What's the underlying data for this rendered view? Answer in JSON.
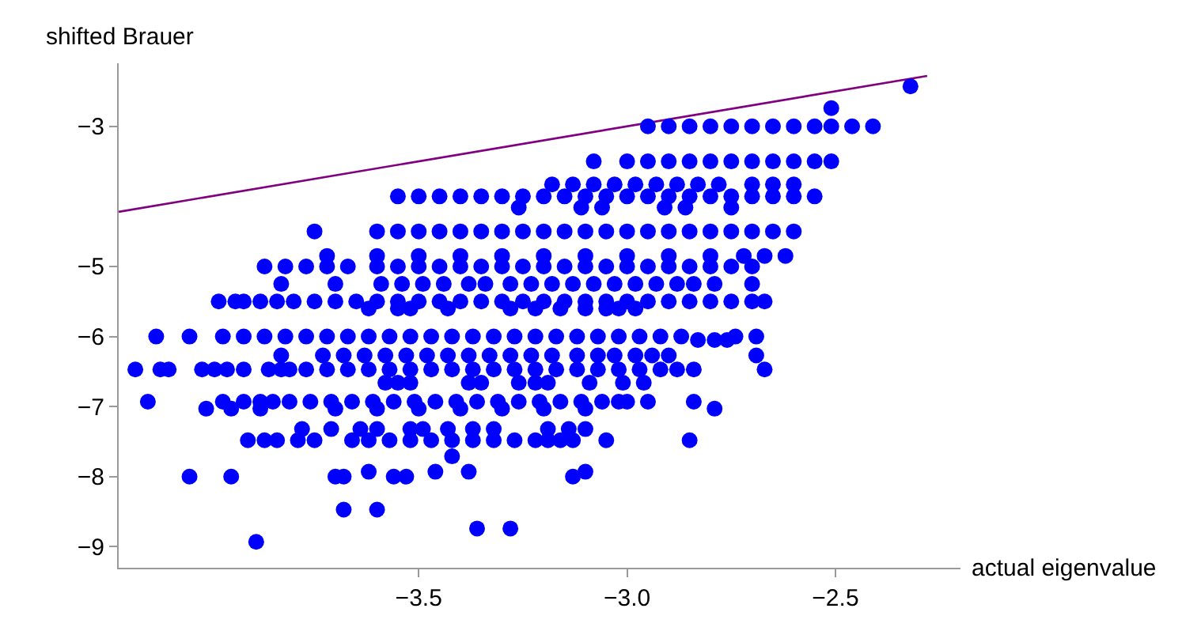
{
  "chart_data": {
    "type": "scatter",
    "xlabel": "actual eigenvalue",
    "ylabel": "shifted Brauer",
    "xlim": [
      -4.22,
      -2.2
    ],
    "ylim": [
      -9.3,
      -2.1
    ],
    "xticks": [
      {
        "value": -3.5,
        "label": "−3.5"
      },
      {
        "value": -3.0,
        "label": "−3.0"
      },
      {
        "value": -2.5,
        "label": "−2.5"
      }
    ],
    "yticks": [
      {
        "value": -3,
        "label": "−3"
      },
      {
        "value": -5,
        "label": "−5"
      },
      {
        "value": -6,
        "label": "−6"
      },
      {
        "value": -7,
        "label": "−7"
      },
      {
        "value": -8,
        "label": "−8"
      },
      {
        "value": -9,
        "label": "−9"
      }
    ],
    "marker": "circle",
    "series": [
      {
        "type": "line",
        "marker": "none",
        "color": "#800080",
        "x": [
          -4.22,
          -2.28
        ],
        "values": [
          -4.22,
          -2.28
        ]
      },
      {
        "color": "#0000ff",
        "x": [
          -2.32,
          -2.51
        ],
        "values": [
          -2.43,
          -2.74
        ]
      },
      {
        "color": "#0000ff",
        "x": [
          -2.95,
          -2.9,
          -2.85,
          -2.8,
          -2.75,
          -2.7,
          -2.65,
          -2.6,
          -2.55,
          -2.51,
          -2.46,
          -2.41
        ],
        "values": [
          -3,
          -3,
          -3,
          -3,
          -3,
          -3,
          -3,
          -3,
          -3,
          -3,
          -3,
          -3
        ]
      },
      {
        "color": "#0000ff",
        "x": [
          -3.08,
          -3.0,
          -2.95,
          -2.9,
          -2.85,
          -2.8,
          -2.75,
          -2.7,
          -2.65,
          -2.6,
          -2.55,
          -2.51
        ],
        "values": [
          -3.5,
          -3.5,
          -3.5,
          -3.5,
          -3.5,
          -3.5,
          -3.5,
          -3.5,
          -3.5,
          -3.5,
          -3.5,
          -3.5
        ]
      },
      {
        "color": "#0000ff",
        "x": [
          -3.18,
          -3.13,
          -3.08,
          -3.03,
          -2.98,
          -2.93,
          -2.88,
          -2.83,
          -2.78,
          -2.7,
          -2.65,
          -2.6
        ],
        "values": [
          -3.83,
          -3.83,
          -3.83,
          -3.83,
          -3.83,
          -3.83,
          -3.83,
          -3.83,
          -3.83,
          -3.83,
          -3.83,
          -3.83
        ]
      },
      {
        "color": "#0000ff",
        "x": [
          -3.55,
          -3.5,
          -3.45,
          -3.4,
          -3.35,
          -3.3,
          -3.25,
          -3.2,
          -3.15,
          -3.1,
          -3.05,
          -3.0,
          -2.95,
          -2.9,
          -2.85,
          -2.8,
          -2.75,
          -2.7,
          -2.65,
          -2.6,
          -2.55
        ],
        "values": [
          -4,
          -4,
          -4,
          -4,
          -4,
          -4,
          -4,
          -4,
          -4,
          -4,
          -4,
          -4,
          -4,
          -4,
          -4,
          -4,
          -4,
          -4,
          -4,
          -4,
          -4
        ]
      },
      {
        "color": "#0000ff",
        "x": [
          -3.26,
          -3.11,
          -3.06,
          -2.91,
          -2.86,
          -2.75
        ],
        "values": [
          -4.16,
          -4.16,
          -4.16,
          -4.16,
          -4.16,
          -4.16
        ]
      },
      {
        "color": "#0000ff",
        "x": [
          -3.75,
          -3.6,
          -3.55,
          -3.5,
          -3.45,
          -3.4,
          -3.35,
          -3.3,
          -3.25,
          -3.2,
          -3.15,
          -3.1,
          -3.05,
          -3.0,
          -2.95,
          -2.9,
          -2.85,
          -2.8,
          -2.75,
          -2.7,
          -2.65,
          -2.6
        ],
        "values": [
          -4.5,
          -4.5,
          -4.5,
          -4.5,
          -4.5,
          -4.5,
          -4.5,
          -4.5,
          -4.5,
          -4.5,
          -4.5,
          -4.5,
          -4.5,
          -4.5,
          -4.5,
          -4.5,
          -4.5,
          -4.5,
          -4.5,
          -4.5,
          -4.5,
          -4.5
        ]
      },
      {
        "color": "#0000ff",
        "x": [
          -3.72,
          -3.6,
          -3.5,
          -3.4,
          -3.3,
          -3.2,
          -3.1,
          -3.0,
          -2.9,
          -2.8,
          -2.72,
          -2.67,
          -2.62
        ],
        "values": [
          -4.85,
          -4.85,
          -4.85,
          -4.85,
          -4.85,
          -4.85,
          -4.85,
          -4.85,
          -4.85,
          -4.85,
          -4.85,
          -4.85,
          -4.85
        ]
      },
      {
        "color": "#0000ff",
        "x": [
          -3.87,
          -3.82,
          -3.77,
          -3.72,
          -3.67,
          -3.6,
          -3.55,
          -3.5,
          -3.45,
          -3.4,
          -3.35,
          -3.3,
          -3.25,
          -3.2,
          -3.15,
          -3.1,
          -3.05,
          -3.0,
          -2.95,
          -2.9,
          -2.85,
          -2.8,
          -2.75,
          -2.7
        ],
        "values": [
          -5,
          -5,
          -5,
          -5,
          -5,
          -5,
          -5,
          -5,
          -5,
          -5,
          -5,
          -5,
          -5,
          -5,
          -5,
          -5,
          -5,
          -5,
          -5,
          -5,
          -5,
          -5,
          -5,
          -5
        ]
      },
      {
        "color": "#0000ff",
        "x": [
          -3.83,
          -3.7,
          -3.59,
          -3.54,
          -3.49,
          -3.44,
          -3.38,
          -3.34,
          -3.28,
          -3.23,
          -3.18,
          -3.13,
          -3.08,
          -3.03,
          -2.98,
          -2.93,
          -2.88,
          -2.84,
          -2.79,
          -2.7
        ],
        "values": [
          -5.25,
          -5.25,
          -5.25,
          -5.25,
          -5.25,
          -5.25,
          -5.25,
          -5.25,
          -5.25,
          -5.25,
          -5.25,
          -5.25,
          -5.25,
          -5.25,
          -5.25,
          -5.25,
          -5.25,
          -5.25,
          -5.25,
          -5.25
        ]
      },
      {
        "color": "#0000ff",
        "x": [
          -3.98,
          -3.94,
          -3.92,
          -3.88,
          -3.84,
          -3.8,
          -3.75,
          -3.7,
          -3.65,
          -3.6,
          -3.55,
          -3.5,
          -3.45,
          -3.4,
          -3.35,
          -3.3,
          -3.25,
          -3.2,
          -3.15,
          -3.1,
          -3.05,
          -3.0,
          -2.95,
          -2.9,
          -2.85,
          -2.8,
          -2.75,
          -2.7,
          -2.67
        ],
        "values": [
          -5.5,
          -5.5,
          -5.5,
          -5.5,
          -5.5,
          -5.5,
          -5.5,
          -5.5,
          -5.5,
          -5.5,
          -5.5,
          -5.5,
          -5.5,
          -5.5,
          -5.5,
          -5.5,
          -5.5,
          -5.5,
          -5.5,
          -5.5,
          -5.5,
          -5.5,
          -5.5,
          -5.5,
          -5.5,
          -5.5,
          -5.5,
          -5.5,
          -5.5
        ]
      },
      {
        "color": "#0000ff",
        "x": [
          -3.62,
          -3.55,
          -3.52,
          -3.43,
          -3.28,
          -3.22,
          -3.16,
          -3.1,
          -3.05,
          -3.02,
          -2.98
        ],
        "values": [
          -5.6,
          -5.6,
          -5.6,
          -5.6,
          -5.6,
          -5.6,
          -5.6,
          -5.6,
          -5.6,
          -5.6,
          -5.6
        ]
      },
      {
        "color": "#0000ff",
        "x": [
          -4.13,
          -4.05,
          -3.97,
          -3.92,
          -3.87,
          -3.82,
          -3.77,
          -3.72,
          -3.67,
          -3.62,
          -3.57,
          -3.52,
          -3.47,
          -3.42,
          -3.37,
          -3.32,
          -3.27,
          -3.22,
          -3.17,
          -3.12,
          -3.07,
          -3.02,
          -2.97,
          -2.92,
          -2.87,
          -2.83,
          -2.79,
          -2.76,
          -2.74,
          -2.69
        ],
        "values": [
          -6,
          -6,
          -6,
          -6,
          -6,
          -6,
          -6,
          -6,
          -6,
          -6,
          -6,
          -6,
          -6,
          -6,
          -6,
          -6,
          -6,
          -6,
          -6,
          -6,
          -6,
          -6,
          -6,
          -6,
          -6,
          -6.05,
          -6.05,
          -6.05,
          -6,
          -6
        ]
      },
      {
        "color": "#0000ff",
        "x": [
          -3.83,
          -3.73,
          -3.68,
          -3.63,
          -3.58,
          -3.53,
          -3.48,
          -3.43,
          -3.38,
          -3.33,
          -3.28,
          -3.23,
          -3.18,
          -3.12,
          -3.07,
          -3.03,
          -2.98,
          -2.94,
          -2.9,
          -2.69
        ],
        "values": [
          -6.27,
          -6.27,
          -6.27,
          -6.27,
          -6.27,
          -6.27,
          -6.27,
          -6.27,
          -6.27,
          -6.27,
          -6.27,
          -6.27,
          -6.27,
          -6.27,
          -6.27,
          -6.27,
          -6.27,
          -6.27,
          -6.27,
          -6.27
        ]
      },
      {
        "color": "#0000ff",
        "x": [
          -4.18,
          -4.12,
          -4.1,
          -4.02,
          -3.99,
          -3.96,
          -3.92,
          -3.86,
          -3.83,
          -3.81,
          -3.77,
          -3.72,
          -3.67,
          -3.62,
          -3.57,
          -3.52,
          -3.47,
          -3.42,
          -3.37,
          -3.32,
          -3.27,
          -3.22,
          -3.17,
          -3.12,
          -3.07,
          -3.02,
          -2.97,
          -2.92,
          -2.88,
          -2.84,
          -2.67
        ],
        "values": [
          -6.47,
          -6.47,
          -6.47,
          -6.47,
          -6.47,
          -6.47,
          -6.47,
          -6.47,
          -6.47,
          -6.47,
          -6.47,
          -6.47,
          -6.47,
          -6.47,
          -6.47,
          -6.47,
          -6.47,
          -6.47,
          -6.47,
          -6.47,
          -6.47,
          -6.47,
          -6.47,
          -6.47,
          -6.47,
          -6.47,
          -6.47,
          -6.47,
          -6.47,
          -6.47,
          -6.47
        ]
      },
      {
        "color": "#0000ff",
        "x": [
          -3.58,
          -3.55,
          -3.52,
          -3.38,
          -3.35,
          -3.26,
          -3.22,
          -3.19,
          -3.09,
          -3.01,
          -2.96
        ],
        "values": [
          -6.66,
          -6.66,
          -6.66,
          -6.66,
          -6.66,
          -6.66,
          -6.66,
          -6.66,
          -6.66,
          -6.66,
          -6.66
        ]
      },
      {
        "color": "#0000ff",
        "x": [
          -4.15,
          -3.97,
          -3.92,
          -3.88,
          -3.85,
          -3.81,
          -3.76,
          -3.71,
          -3.66,
          -3.61,
          -3.56,
          -3.51,
          -3.46,
          -3.41,
          -3.36,
          -3.31,
          -3.26,
          -3.21,
          -3.16,
          -3.11,
          -3.06,
          -3.02,
          -3.0,
          -2.95,
          -2.84
        ],
        "values": [
          -6.93,
          -6.93,
          -6.93,
          -6.93,
          -6.93,
          -6.93,
          -6.93,
          -6.93,
          -6.93,
          -6.93,
          -6.93,
          -6.93,
          -6.93,
          -6.93,
          -6.93,
          -6.93,
          -6.93,
          -6.93,
          -6.93,
          -6.93,
          -6.93,
          -6.93,
          -6.93,
          -6.93,
          -6.93
        ]
      },
      {
        "color": "#0000ff",
        "x": [
          -4.01,
          -3.95,
          -3.88,
          -3.7,
          -3.6,
          -3.5,
          -3.4,
          -3.3,
          -3.2,
          -3.1,
          -2.79
        ],
        "values": [
          -7.03,
          -7.03,
          -7.03,
          -7.03,
          -7.03,
          -7.03,
          -7.03,
          -7.03,
          -7.03,
          -7.03,
          -7.03
        ]
      },
      {
        "color": "#0000ff",
        "x": [
          -3.78,
          -3.71,
          -3.64,
          -3.6,
          -3.52,
          -3.49,
          -3.43,
          -3.37,
          -3.32,
          -3.19,
          -3.14,
          -3.1
        ],
        "values": [
          -7.32,
          -7.32,
          -7.32,
          -7.32,
          -7.32,
          -7.32,
          -7.32,
          -7.32,
          -7.32,
          -7.32,
          -7.32,
          -7.32
        ]
      },
      {
        "color": "#0000ff",
        "x": [
          -3.91,
          -3.87,
          -3.84,
          -3.79,
          -3.75,
          -3.66,
          -3.62,
          -3.57,
          -3.52,
          -3.47,
          -3.42,
          -3.37,
          -3.32,
          -3.27,
          -3.22,
          -3.19,
          -3.16,
          -3.13,
          -3.05,
          -2.85
        ],
        "values": [
          -7.48,
          -7.48,
          -7.48,
          -7.48,
          -7.48,
          -7.48,
          -7.48,
          -7.48,
          -7.48,
          -7.48,
          -7.48,
          -7.48,
          -7.48,
          -7.48,
          -7.48,
          -7.48,
          -7.48,
          -7.48,
          -7.48,
          -7.48
        ]
      },
      {
        "color": "#0000ff",
        "x": [
          -3.42,
          -3.62,
          -3.46,
          -3.38,
          -3.1,
          -4.05,
          -3.95,
          -3.7,
          -3.68,
          -3.56,
          -3.53,
          -3.13,
          -3.68,
          -3.6,
          -3.36,
          -3.28,
          -3.89
        ],
        "values": [
          -7.71,
          -7.93,
          -7.93,
          -7.93,
          -7.93,
          -8,
          -8,
          -8,
          -8,
          -8,
          -8,
          -8,
          -8.47,
          -8.47,
          -8.74,
          -8.74,
          -8.93
        ]
      }
    ]
  }
}
